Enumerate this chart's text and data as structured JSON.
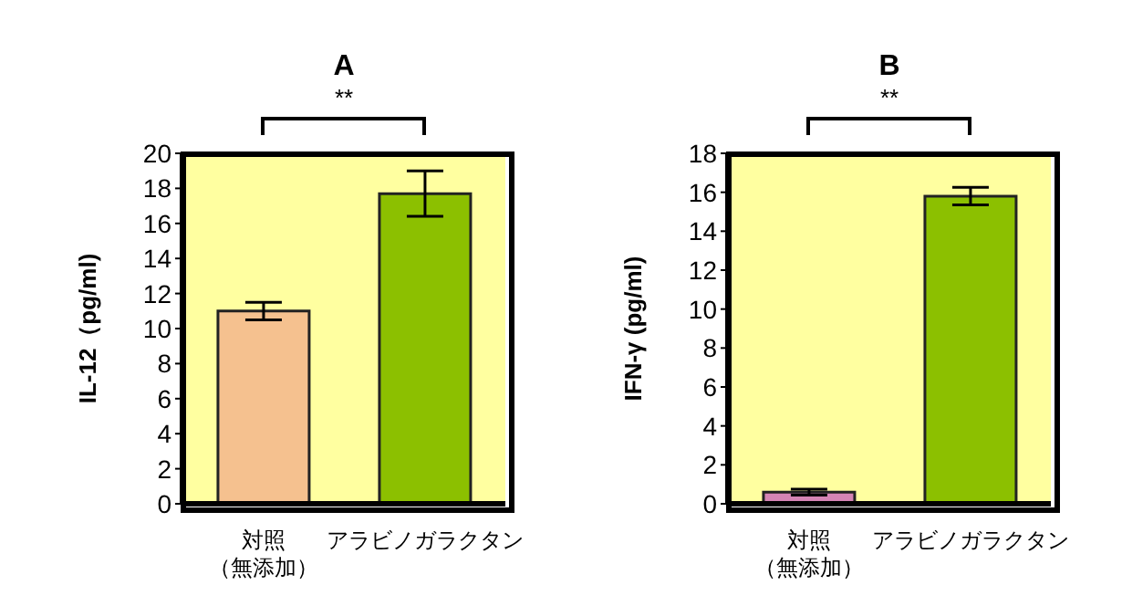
{
  "chart_data": [
    {
      "type": "bar",
      "title": "A",
      "ylabel": "IL-12（pg/ml)",
      "categories": [
        "対照（無添加）",
        "アラビノガラクタン"
      ],
      "values": [
        11.0,
        17.7
      ],
      "colors": [
        "#f5c18f",
        "#8cc000"
      ],
      "errors": [
        0.5,
        1.3
      ],
      "ylim": [
        0,
        20
      ],
      "yticks": [
        0,
        2,
        4,
        6,
        8,
        10,
        12,
        14,
        16,
        18,
        20
      ],
      "annotations": [
        "**"
      ]
    },
    {
      "type": "bar",
      "title": "B",
      "ylabel": "IFN-γ (pg/ml)",
      "categories": [
        "対照（無添加）",
        "アラビノガラクタン"
      ],
      "values": [
        0.6,
        15.8
      ],
      "colors": [
        "#d484b4",
        "#8cc000"
      ],
      "errors": [
        0.15,
        0.45
      ],
      "ylim": [
        0,
        18
      ],
      "yticks": [
        0,
        2,
        4,
        6,
        8,
        10,
        12,
        14,
        16,
        18
      ],
      "annotations": [
        "**"
      ]
    }
  ]
}
